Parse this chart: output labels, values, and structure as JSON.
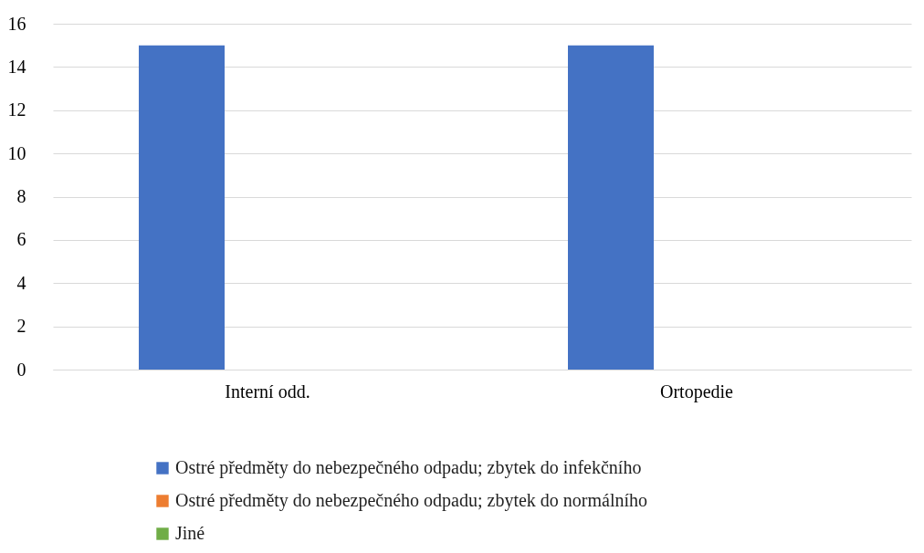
{
  "chart_data": {
    "type": "bar",
    "categories": [
      "Interní odd.",
      "Ortopedie"
    ],
    "series": [
      {
        "name": "Ostré předměty do nebezpečného odpadu; zbytek do infekčního",
        "color": "#4472c4",
        "values": [
          15,
          15
        ]
      },
      {
        "name": "Ostré předměty do nebezpečného odpadu; zbytek do normálního",
        "color": "#ed7d31",
        "values": [
          0,
          0
        ]
      },
      {
        "name": "Jiné",
        "color": "#70ad47",
        "values": [
          0,
          0
        ]
      }
    ],
    "ylim": [
      0,
      16
    ],
    "yticks": [
      0,
      2,
      4,
      6,
      8,
      10,
      12,
      14,
      16
    ],
    "grid": "y",
    "legend": "bottom"
  }
}
